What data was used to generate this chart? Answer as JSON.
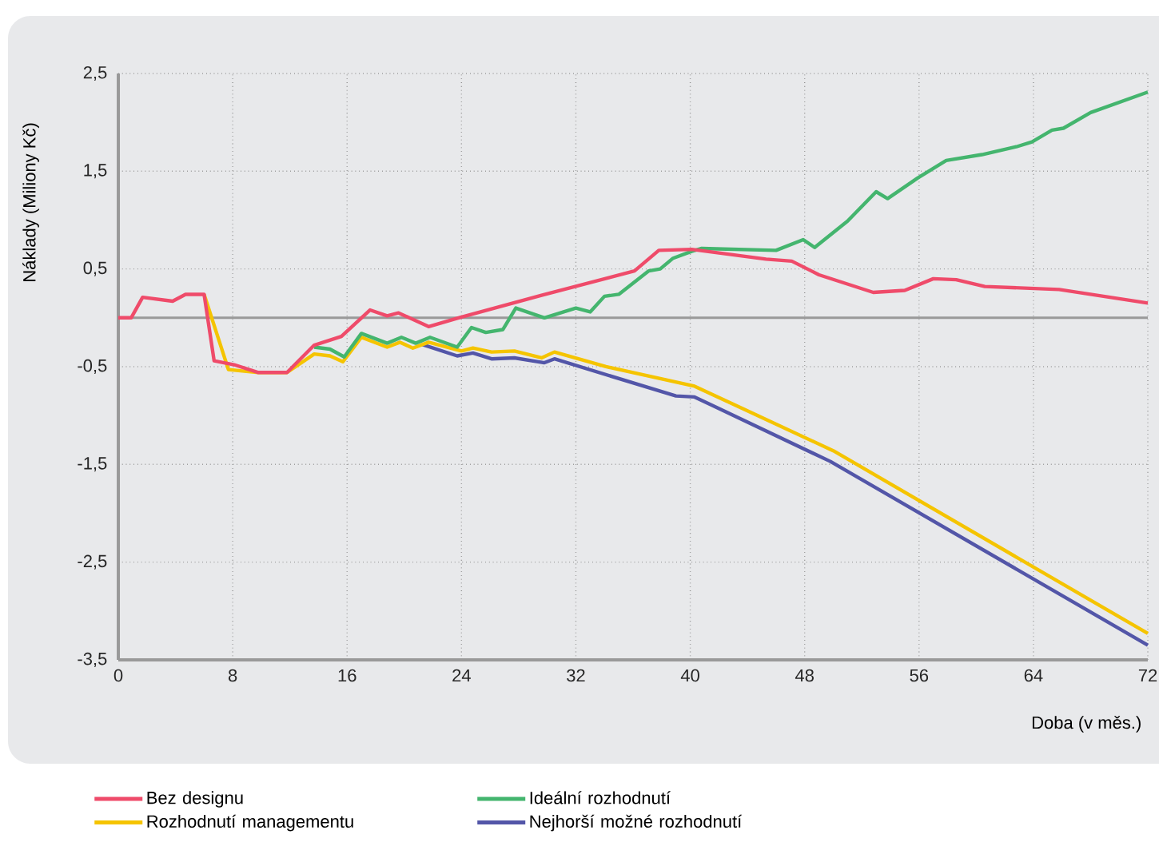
{
  "chart_data": {
    "type": "line",
    "xlabel": "Doba (v měs.)",
    "ylabel": "Náklady  (Miliony Kč)",
    "xlim": [
      0,
      72
    ],
    "xticks": [
      0,
      8,
      16,
      24,
      32,
      40,
      48,
      56,
      64,
      72
    ],
    "ylim": [
      -3.5,
      2.5
    ],
    "yticks": [
      {
        "value": -3.5,
        "label": "-3,5"
      },
      {
        "value": -2.5,
        "label": "-2,5"
      },
      {
        "value": -1.5,
        "label": "-1,5"
      },
      {
        "value": -0.5,
        "label": "-0,5"
      },
      {
        "value": 0.5,
        "label": "0,5"
      },
      {
        "value": 1.5,
        "label": "1,5"
      },
      {
        "value": 2.5,
        "label": "2,5"
      }
    ],
    "grid": true,
    "legend": "bottom",
    "line_style": "solid",
    "ref_lines": [
      {
        "axis": "y",
        "value": 0,
        "color": "#999999"
      }
    ],
    "series": [
      {
        "name": "Bez designu",
        "color": "#ef4b6a",
        "x": [
          0,
          0.9,
          1.7,
          3.8,
          4.7,
          6,
          6.7,
          8.1,
          9.8,
          11.8,
          13.7,
          15.6,
          17.6,
          18.8,
          19.6,
          21.7,
          23.8,
          29.6,
          36.1,
          37.8,
          40.1,
          45.3,
          47.1,
          49,
          52.8,
          55,
          57,
          58.6,
          60.6,
          65.8,
          72
        ],
        "values": [
          0,
          0,
          0.21,
          0.17,
          0.24,
          0.24,
          -0.44,
          -0.48,
          -0.56,
          -0.56,
          -0.28,
          -0.19,
          0.08,
          0.02,
          0.05,
          -0.09,
          0,
          0.23,
          0.48,
          0.69,
          0.7,
          0.6,
          0.58,
          0.44,
          0.26,
          0.28,
          0.4,
          0.39,
          0.32,
          0.29,
          0.15
        ]
      },
      {
        "name": "Ideální rozhodnutí",
        "color": "#44b56e",
        "x": [
          13.7,
          14.8,
          15.8,
          17,
          18.8,
          19.8,
          20.8,
          21.8,
          23.7,
          24.7,
          25.7,
          26.9,
          27.8,
          29.8,
          32,
          33,
          34,
          35,
          37.1,
          37.9,
          38.8,
          40.1,
          40.8,
          46,
          47.9,
          48.7,
          51,
          53,
          53.8,
          55.9,
          57.9,
          60.4,
          62.8,
          63.9,
          65.3,
          66.1,
          68,
          72
        ],
        "values": [
          -0.3,
          -0.32,
          -0.4,
          -0.16,
          -0.26,
          -0.2,
          -0.26,
          -0.2,
          -0.3,
          -0.1,
          -0.15,
          -0.12,
          0.1,
          0,
          0.1,
          0.06,
          0.22,
          0.24,
          0.48,
          0.5,
          0.61,
          0.68,
          0.71,
          0.69,
          0.8,
          0.72,
          0.99,
          1.29,
          1.22,
          1.43,
          1.61,
          1.67,
          1.75,
          1.8,
          1.92,
          1.94,
          2.1,
          2.31
        ]
      },
      {
        "name": "Rozhodnutí managementu",
        "color": "#f5c400",
        "x": [
          6,
          7.7,
          9.8,
          11.8,
          13.7,
          14.8,
          15.7,
          17,
          18.8,
          19.7,
          20.6,
          21.7,
          24,
          24.8,
          26.1,
          27.7,
          29.6,
          30.5,
          34.1,
          40.3,
          50,
          72
        ],
        "values": [
          0.24,
          -0.53,
          -0.56,
          -0.56,
          -0.37,
          -0.39,
          -0.45,
          -0.2,
          -0.3,
          -0.25,
          -0.31,
          -0.25,
          -0.34,
          -0.31,
          -0.35,
          -0.34,
          -0.41,
          -0.35,
          -0.5,
          -0.7,
          -1.36,
          -3.23
        ]
      },
      {
        "name": "Nejhorší možné rozhodnutí",
        "color": "#5356a8",
        "x": [
          21.2,
          23.7,
          24.8,
          26.1,
          27.7,
          29.8,
          30.5,
          39,
          40.3,
          49.8,
          72
        ],
        "values": [
          -0.27,
          -0.39,
          -0.36,
          -0.42,
          -0.41,
          -0.46,
          -0.42,
          -0.8,
          -0.81,
          -1.47,
          -3.35
        ]
      }
    ]
  }
}
